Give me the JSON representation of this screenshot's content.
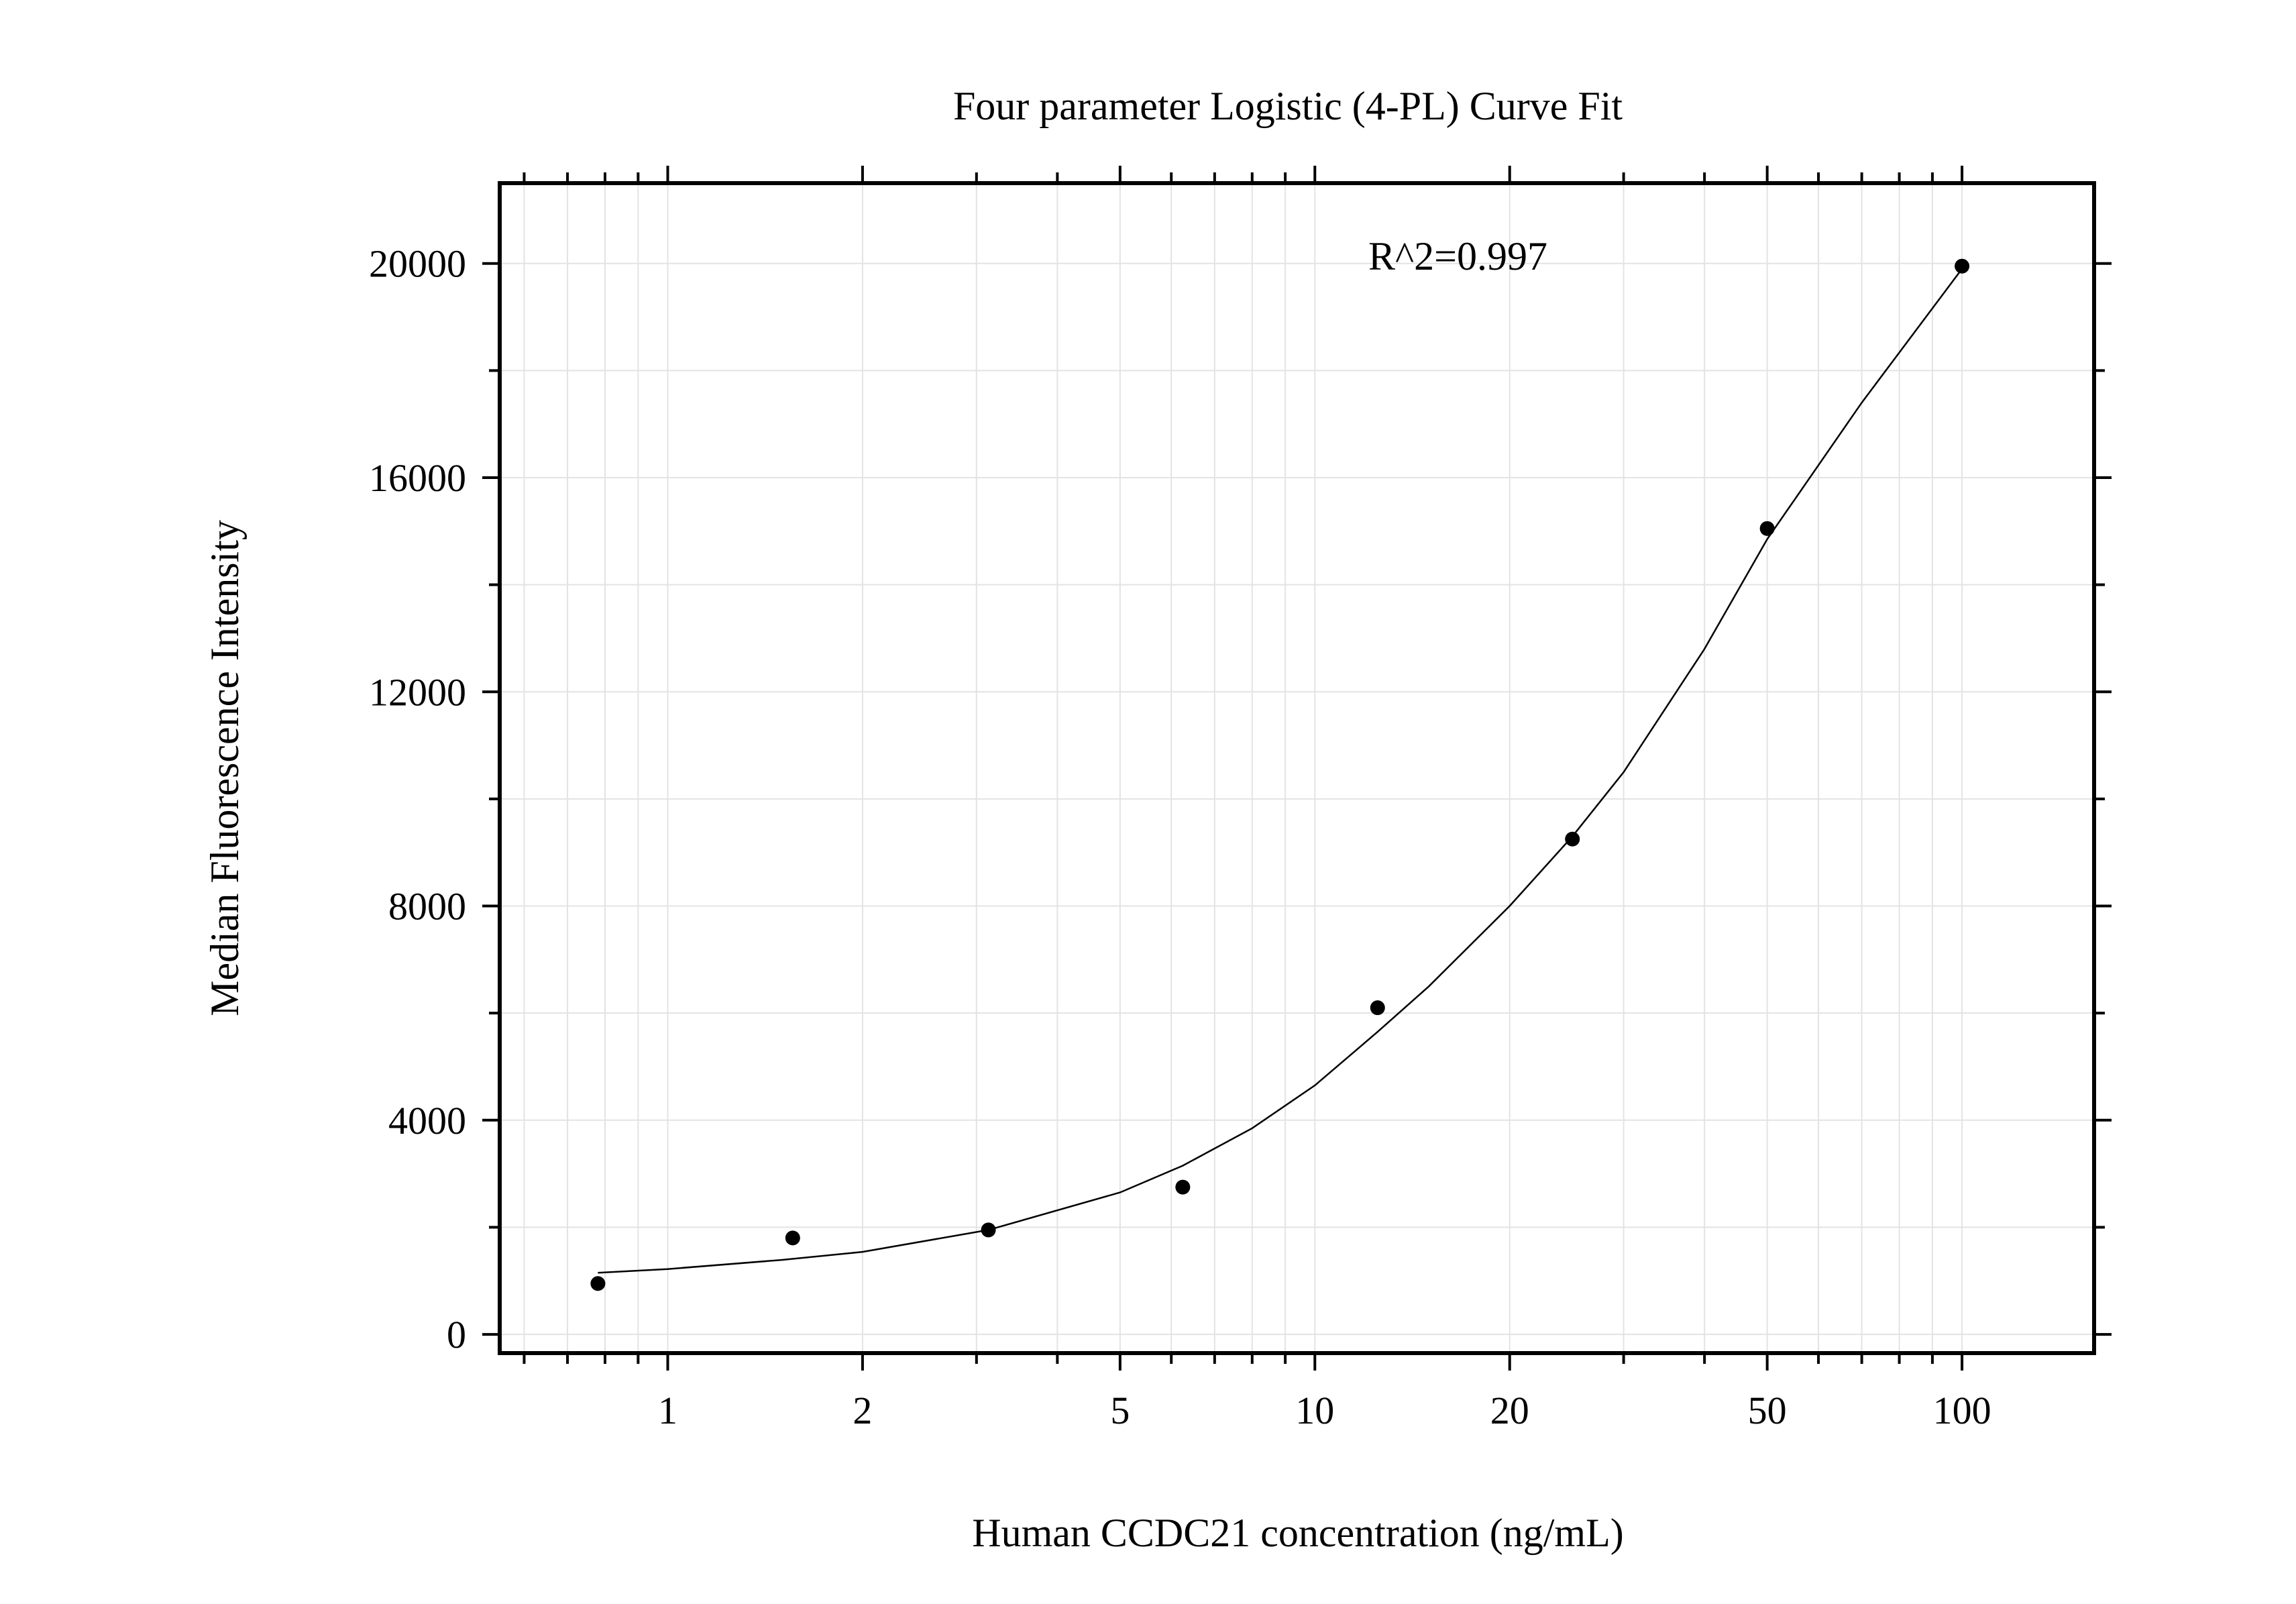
{
  "chart_data": {
    "type": "scatter",
    "title": "Four parameter Logistic (4-PL) Curve Fit",
    "xlabel": "Human CCDC21 concentration (ng/mL)",
    "ylabel": "Median Fluorescence Intensity",
    "x_scale": "log",
    "xlim": [
      0.55,
      160
    ],
    "ylim": [
      -350,
      21500
    ],
    "x_ticks": [
      1,
      2,
      5,
      10,
      20,
      50,
      100
    ],
    "x_tick_labels": [
      "1",
      "2",
      "5",
      "10",
      "20",
      "50",
      "100"
    ],
    "y_ticks": [
      0,
      4000,
      8000,
      12000,
      16000,
      20000
    ],
    "y_tick_labels": [
      "0",
      "4000",
      "8000",
      "12000",
      "16000",
      "20000"
    ],
    "grid": true,
    "annotation": "R^2=0.997",
    "series": [
      {
        "type": "scatter",
        "x": [
          0.78,
          1.56,
          3.13,
          6.25,
          12.5,
          25,
          50,
          100
        ],
        "y": [
          950,
          1800,
          1950,
          2750,
          6100,
          9250,
          15050,
          19950
        ]
      },
      {
        "type": "line",
        "fit": "4-PL",
        "x": [
          0.78,
          1,
          1.5,
          2,
          3.13,
          5,
          6.25,
          8,
          10,
          12.5,
          15,
          20,
          25,
          30,
          40,
          50,
          70,
          100
        ],
        "y": [
          1150,
          1220,
          1390,
          1540,
          1950,
          2650,
          3150,
          3850,
          4650,
          5650,
          6500,
          8000,
          9300,
          10500,
          12800,
          14850,
          17400,
          19900
        ]
      }
    ]
  }
}
